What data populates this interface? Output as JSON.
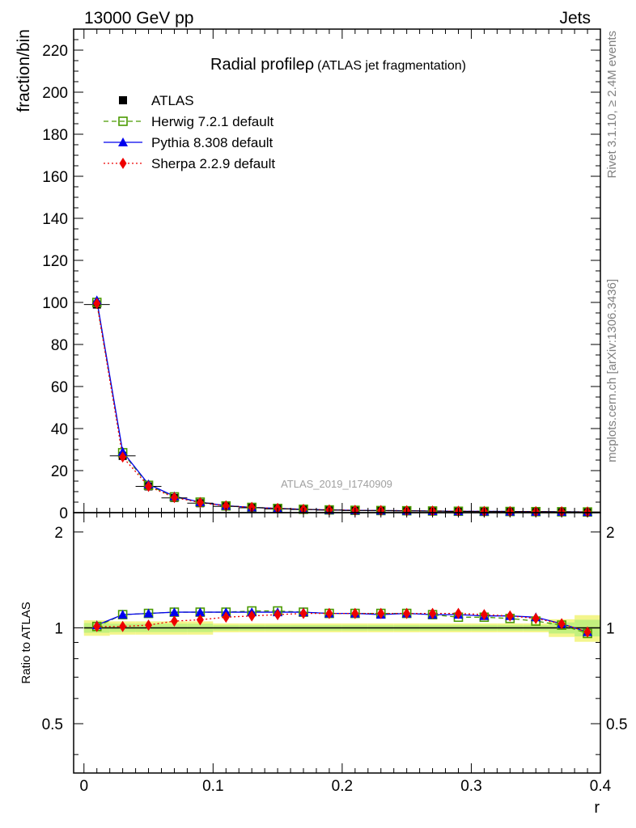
{
  "header": {
    "left": "13000 GeV pp",
    "right": "Jets"
  },
  "side_labels": {
    "rivet": "Rivet 3.1.10, ≥ 2.4M events",
    "mcplots": "mcplots.cern.ch [arXiv:1306.3436]"
  },
  "chart_data": {
    "type": "scatter",
    "title": "Radial profileρ",
    "subtitle": "(ATLAS jet fragmentation)",
    "watermark": "ATLAS_2019_I1740909",
    "xlabel": "r",
    "ylabel_main": "fraction/bin",
    "ylabel_ratio": "Ratio to ATLAS",
    "xlim": [
      -0.008,
      0.4
    ],
    "ylim_main": [
      0,
      230
    ],
    "ylim_ratio": [
      0.35,
      2.3
    ],
    "xticks": [
      "0",
      "0.1",
      "0.2",
      "0.3",
      "0.4"
    ],
    "yticks_main": [
      "0",
      "20",
      "40",
      "60",
      "80",
      "100",
      "120",
      "140",
      "160",
      "180",
      "200",
      "220"
    ],
    "yticks_ratio": [
      "0.5",
      "1",
      "2"
    ],
    "legend_position": "top-left",
    "x": [
      0.01,
      0.03,
      0.05,
      0.07,
      0.09,
      0.11,
      0.13,
      0.15,
      0.17,
      0.19,
      0.21,
      0.23,
      0.25,
      0.27,
      0.29,
      0.31,
      0.33,
      0.35,
      0.37,
      0.39
    ],
    "series": [
      {
        "name": "ATLAS",
        "color": "#000000",
        "marker": "square-filled",
        "values": [
          99,
          27,
          12.5,
          7,
          4.5,
          3,
          2.3,
          1.8,
          1.5,
          1.2,
          1.0,
          0.9,
          0.8,
          0.7,
          0.6,
          0.55,
          0.5,
          0.45,
          0.4,
          0.35
        ],
        "ratio": [
          1,
          1,
          1,
          1,
          1,
          1,
          1,
          1,
          1,
          1,
          1,
          1,
          1,
          1,
          1,
          1,
          1,
          1,
          1,
          1
        ]
      },
      {
        "name": "Herwig 7.2.1 default",
        "color": "#4a9a00",
        "marker": "square-open",
        "line": "dashed",
        "values": [
          100,
          28.5,
          13,
          7.5,
          5,
          3.2,
          2.5,
          2,
          1.6,
          1.3,
          1.1,
          1.0,
          0.9,
          0.78,
          0.66,
          0.6,
          0.55,
          0.48,
          0.42,
          0.33
        ],
        "ratio": [
          1.01,
          1.1,
          1.11,
          1.12,
          1.12,
          1.12,
          1.13,
          1.13,
          1.12,
          1.11,
          1.11,
          1.11,
          1.11,
          1.1,
          1.08,
          1.08,
          1.07,
          1.05,
          1.02,
          0.96
        ]
      },
      {
        "name": "Pythia 8.308 default",
        "color": "#0000ee",
        "marker": "triangle",
        "line": "solid",
        "values": [
          101,
          29,
          13.5,
          7.8,
          5,
          3.3,
          2.5,
          2,
          1.6,
          1.3,
          1.1,
          1.0,
          0.9,
          0.78,
          0.66,
          0.6,
          0.55,
          0.48,
          0.42,
          0.34
        ],
        "ratio": [
          1.02,
          1.1,
          1.11,
          1.12,
          1.12,
          1.12,
          1.12,
          1.12,
          1.12,
          1.11,
          1.11,
          1.1,
          1.11,
          1.1,
          1.1,
          1.09,
          1.09,
          1.08,
          1.03,
          0.97
        ]
      },
      {
        "name": "Sherpa 2.2.9 default",
        "color": "#ee0000",
        "marker": "diamond",
        "line": "dotted",
        "values": [
          99.5,
          26.5,
          12.5,
          7.2,
          4.8,
          3.2,
          2.5,
          2,
          1.6,
          1.3,
          1.1,
          1.0,
          0.9,
          0.78,
          0.66,
          0.6,
          0.55,
          0.48,
          0.41,
          0.34
        ],
        "ratio": [
          1.01,
          1.01,
          1.02,
          1.05,
          1.06,
          1.08,
          1.09,
          1.1,
          1.11,
          1.11,
          1.11,
          1.11,
          1.11,
          1.11,
          1.11,
          1.1,
          1.09,
          1.07,
          1.03,
          0.97
        ]
      }
    ],
    "uncertainty_band": {
      "color_outer": "#f3f58c",
      "color_inner": "#c3f07e",
      "relative": [
        0.035,
        0.03,
        0.03,
        0.03,
        0.03,
        0.02,
        0.02,
        0.02,
        0.02,
        0.02,
        0.02,
        0.02,
        0.02,
        0.02,
        0.02,
        0.02,
        0.02,
        0.02,
        0.04,
        0.06
      ]
    }
  }
}
